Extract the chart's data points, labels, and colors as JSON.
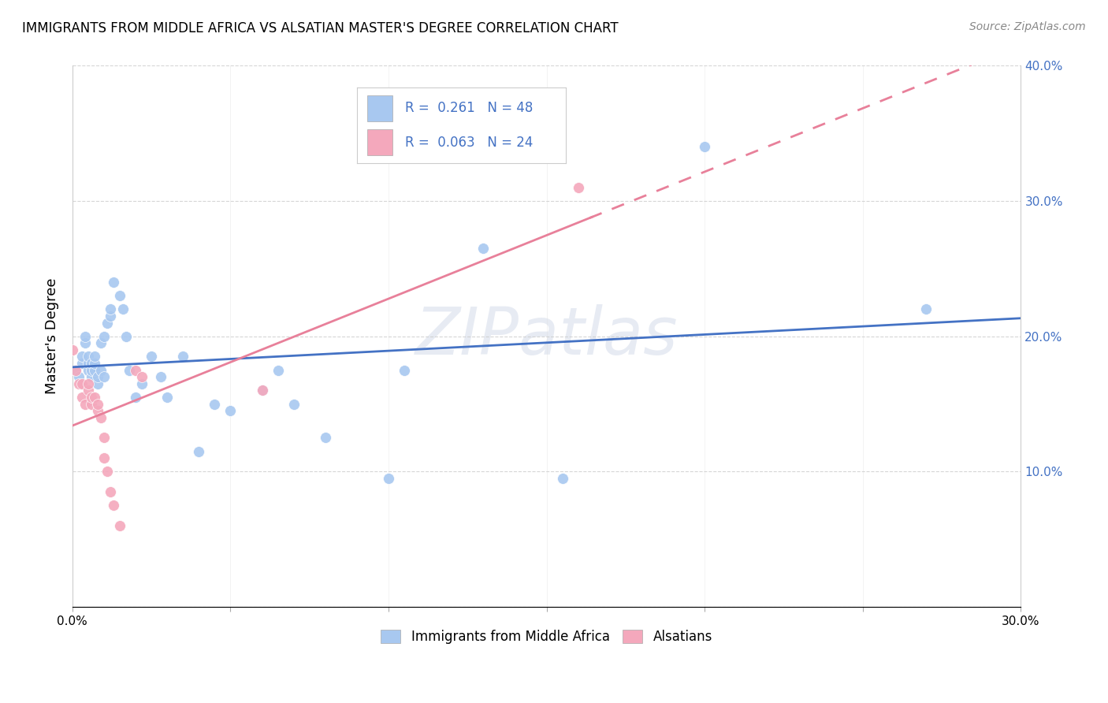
{
  "title": "IMMIGRANTS FROM MIDDLE AFRICA VS ALSATIAN MASTER'S DEGREE CORRELATION CHART",
  "source": "Source: ZipAtlas.com",
  "ylabel": "Master's Degree",
  "legend_labels": [
    "Immigrants from Middle Africa",
    "Alsatians"
  ],
  "blue_R": 0.261,
  "blue_N": 48,
  "pink_R": 0.063,
  "pink_N": 24,
  "xlim": [
    0.0,
    0.3
  ],
  "ylim": [
    0.0,
    0.4
  ],
  "blue_color": "#A8C8F0",
  "pink_color": "#F4A8BC",
  "blue_line_color": "#4472C4",
  "pink_line_color": "#E8809A",
  "watermark": "ZIPatlas",
  "blue_points_x": [
    0.001,
    0.002,
    0.003,
    0.003,
    0.004,
    0.004,
    0.005,
    0.005,
    0.005,
    0.006,
    0.006,
    0.006,
    0.007,
    0.007,
    0.007,
    0.008,
    0.008,
    0.009,
    0.009,
    0.01,
    0.01,
    0.011,
    0.012,
    0.012,
    0.013,
    0.015,
    0.016,
    0.017,
    0.018,
    0.02,
    0.022,
    0.025,
    0.028,
    0.03,
    0.035,
    0.04,
    0.045,
    0.05,
    0.06,
    0.065,
    0.07,
    0.08,
    0.1,
    0.105,
    0.13,
    0.155,
    0.2,
    0.27
  ],
  "blue_points_y": [
    0.175,
    0.17,
    0.18,
    0.185,
    0.195,
    0.2,
    0.175,
    0.18,
    0.185,
    0.17,
    0.175,
    0.18,
    0.175,
    0.18,
    0.185,
    0.165,
    0.17,
    0.175,
    0.195,
    0.17,
    0.2,
    0.21,
    0.215,
    0.22,
    0.24,
    0.23,
    0.22,
    0.2,
    0.175,
    0.155,
    0.165,
    0.185,
    0.17,
    0.155,
    0.185,
    0.115,
    0.15,
    0.145,
    0.16,
    0.175,
    0.15,
    0.125,
    0.095,
    0.175,
    0.265,
    0.095,
    0.34,
    0.22
  ],
  "pink_points_x": [
    0.0,
    0.001,
    0.002,
    0.003,
    0.003,
    0.004,
    0.005,
    0.005,
    0.006,
    0.006,
    0.007,
    0.008,
    0.008,
    0.009,
    0.01,
    0.01,
    0.011,
    0.012,
    0.013,
    0.015,
    0.02,
    0.022,
    0.06,
    0.16
  ],
  "pink_points_y": [
    0.19,
    0.175,
    0.165,
    0.165,
    0.155,
    0.15,
    0.16,
    0.165,
    0.15,
    0.155,
    0.155,
    0.145,
    0.15,
    0.14,
    0.125,
    0.11,
    0.1,
    0.085,
    0.075,
    0.06,
    0.175,
    0.17,
    0.16,
    0.31
  ],
  "xtick_positions": [
    0.0,
    0.05,
    0.1,
    0.15,
    0.2,
    0.25,
    0.3
  ],
  "ytick_positions": [
    0.0,
    0.1,
    0.2,
    0.3,
    0.4
  ]
}
